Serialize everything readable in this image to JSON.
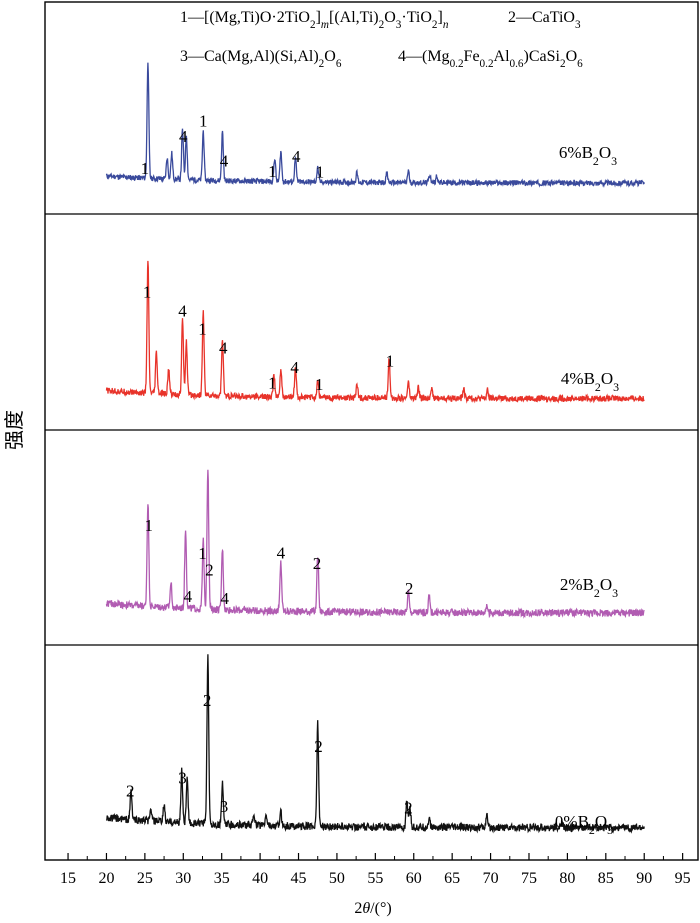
{
  "chart_data": {
    "type": "line",
    "title": "",
    "xlabel": "2θ/(°)",
    "ylabel": "强度",
    "xlim": [
      12,
      97
    ],
    "x_ticks": [
      15,
      20,
      25,
      30,
      35,
      40,
      45,
      50,
      55,
      60,
      65,
      70,
      75,
      80,
      85,
      90,
      95
    ],
    "legend_lines": [
      {
        "num": "1",
        "dash": "—",
        "parts": [
          [
            "n",
            "[(Mg,Ti)O·2TiO"
          ],
          [
            "sub",
            "2"
          ],
          [
            "n",
            "]"
          ],
          [
            "subi",
            "m"
          ],
          [
            "n",
            "[(Al,Ti)"
          ],
          [
            "sub",
            "2"
          ],
          [
            "n",
            "O"
          ],
          [
            "sub",
            "3"
          ],
          [
            "n",
            "·TiO"
          ],
          [
            "sub",
            "2"
          ],
          [
            "n",
            "]"
          ],
          [
            "subi",
            "n"
          ]
        ]
      },
      {
        "num": "2",
        "dash": "—",
        "parts": [
          [
            "n",
            "CaTiO"
          ],
          [
            "sub",
            "3"
          ]
        ]
      },
      {
        "num": "3",
        "dash": "—",
        "parts": [
          [
            "n",
            "Ca(Mg,Al)(Si,Al)"
          ],
          [
            "sub",
            "2"
          ],
          [
            "n",
            "O"
          ],
          [
            "sub",
            "6"
          ]
        ]
      },
      {
        "num": "4",
        "dash": "—",
        "parts": [
          [
            "n",
            "(Mg"
          ],
          [
            "sub",
            "0.2"
          ],
          [
            "n",
            "Fe"
          ],
          [
            "sub",
            "0.2"
          ],
          [
            "n",
            "Al"
          ],
          [
            "sub",
            "0.6"
          ],
          [
            "n",
            ")CaSi"
          ],
          [
            "sub",
            "2"
          ],
          [
            "n",
            "O"
          ],
          [
            "sub",
            "6"
          ]
        ]
      }
    ],
    "series": [
      {
        "label_parts": [
          [
            "n",
            "6%B"
          ],
          [
            "sub",
            "2"
          ],
          [
            "n",
            "O"
          ],
          [
            "sub",
            "3"
          ]
        ],
        "color": "#3a4a9c",
        "peaks": [
          [
            25.4,
            1.0
          ],
          [
            27.9,
            0.18
          ],
          [
            28.5,
            0.22
          ],
          [
            29.9,
            0.42
          ],
          [
            30.4,
            0.38
          ],
          [
            32.6,
            0.42
          ],
          [
            35.1,
            0.42
          ],
          [
            41.9,
            0.2
          ],
          [
            42.7,
            0.26
          ],
          [
            44.6,
            0.2
          ],
          [
            47.5,
            0.12
          ],
          [
            52.6,
            0.08
          ],
          [
            56.5,
            0.08
          ],
          [
            59.3,
            0.1
          ],
          [
            62.1,
            0.07
          ],
          [
            63.0,
            0.06
          ]
        ],
        "labels": [
          [
            "1",
            25.0
          ],
          [
            "4",
            30.0
          ],
          [
            "1",
            32.6
          ],
          [
            "4",
            35.3
          ],
          [
            "1",
            41.6
          ],
          [
            "4",
            44.7
          ],
          [
            "1",
            47.8
          ]
        ]
      },
      {
        "label_parts": [
          [
            "n",
            "4%B"
          ],
          [
            "sub",
            "2"
          ],
          [
            "n",
            "O"
          ],
          [
            "sub",
            "3"
          ]
        ],
        "color": "#e8332a",
        "peaks": [
          [
            25.4,
            1.0
          ],
          [
            26.5,
            0.3
          ],
          [
            28.1,
            0.18
          ],
          [
            29.9,
            0.55
          ],
          [
            30.4,
            0.4
          ],
          [
            32.6,
            0.62
          ],
          [
            35.1,
            0.42
          ],
          [
            41.8,
            0.16
          ],
          [
            42.7,
            0.2
          ],
          [
            44.6,
            0.22
          ],
          [
            47.5,
            0.13
          ],
          [
            52.6,
            0.1
          ],
          [
            56.8,
            0.3
          ],
          [
            59.3,
            0.12
          ],
          [
            60.6,
            0.08
          ],
          [
            62.3,
            0.08
          ],
          [
            66.5,
            0.07
          ],
          [
            69.6,
            0.06
          ]
        ],
        "labels": [
          [
            "1",
            25.3
          ],
          [
            "4",
            29.9
          ],
          [
            "1",
            32.5
          ],
          [
            "4",
            35.2
          ],
          [
            "1",
            41.6
          ],
          [
            "4",
            44.5
          ],
          [
            "1",
            47.7
          ],
          [
            "1",
            56.9
          ]
        ]
      },
      {
        "label_parts": [
          [
            "n",
            "2%B"
          ],
          [
            "sub",
            "2"
          ],
          [
            "n",
            "O"
          ],
          [
            "sub",
            "3"
          ]
        ],
        "color": "#b15cb2",
        "peaks": [
          [
            25.4,
            0.65
          ],
          [
            28.4,
            0.15
          ],
          [
            30.3,
            0.48
          ],
          [
            32.6,
            0.42
          ],
          [
            33.2,
            0.88
          ],
          [
            35.1,
            0.38
          ],
          [
            42.7,
            0.3
          ],
          [
            47.5,
            0.35
          ],
          [
            59.3,
            0.13
          ],
          [
            62.0,
            0.1
          ],
          [
            69.5,
            0.05
          ]
        ],
        "labels": [
          [
            "1",
            25.5
          ],
          [
            "4",
            30.6
          ],
          [
            "1",
            32.5
          ],
          [
            "2",
            33.4
          ],
          [
            "4",
            35.4
          ],
          [
            "4",
            42.7
          ],
          [
            "2",
            47.4
          ],
          [
            "2",
            59.4
          ]
        ]
      },
      {
        "label_parts": [
          [
            "n",
            "0%B"
          ],
          [
            "sub",
            "2"
          ],
          [
            "n",
            "O"
          ],
          [
            "sub",
            "3"
          ]
        ],
        "color": "#111111",
        "peaks": [
          [
            23.2,
            0.17
          ],
          [
            25.8,
            0.07
          ],
          [
            27.5,
            0.1
          ],
          [
            29.8,
            0.31
          ],
          [
            30.5,
            0.26
          ],
          [
            33.2,
            1.0
          ],
          [
            35.1,
            0.24
          ],
          [
            39.2,
            0.07
          ],
          [
            40.8,
            0.06
          ],
          [
            42.7,
            0.08
          ],
          [
            47.5,
            0.62
          ],
          [
            59.1,
            0.15
          ],
          [
            59.5,
            0.12
          ],
          [
            62.0,
            0.05
          ],
          [
            69.5,
            0.07
          ],
          [
            79.3,
            0.03
          ]
        ],
        "labels": [
          [
            "2",
            23.1
          ],
          [
            "3",
            29.9
          ],
          [
            "2",
            33.1
          ],
          [
            "3",
            35.3
          ],
          [
            "2",
            47.6
          ],
          [
            "2",
            59.3
          ]
        ]
      }
    ]
  }
}
